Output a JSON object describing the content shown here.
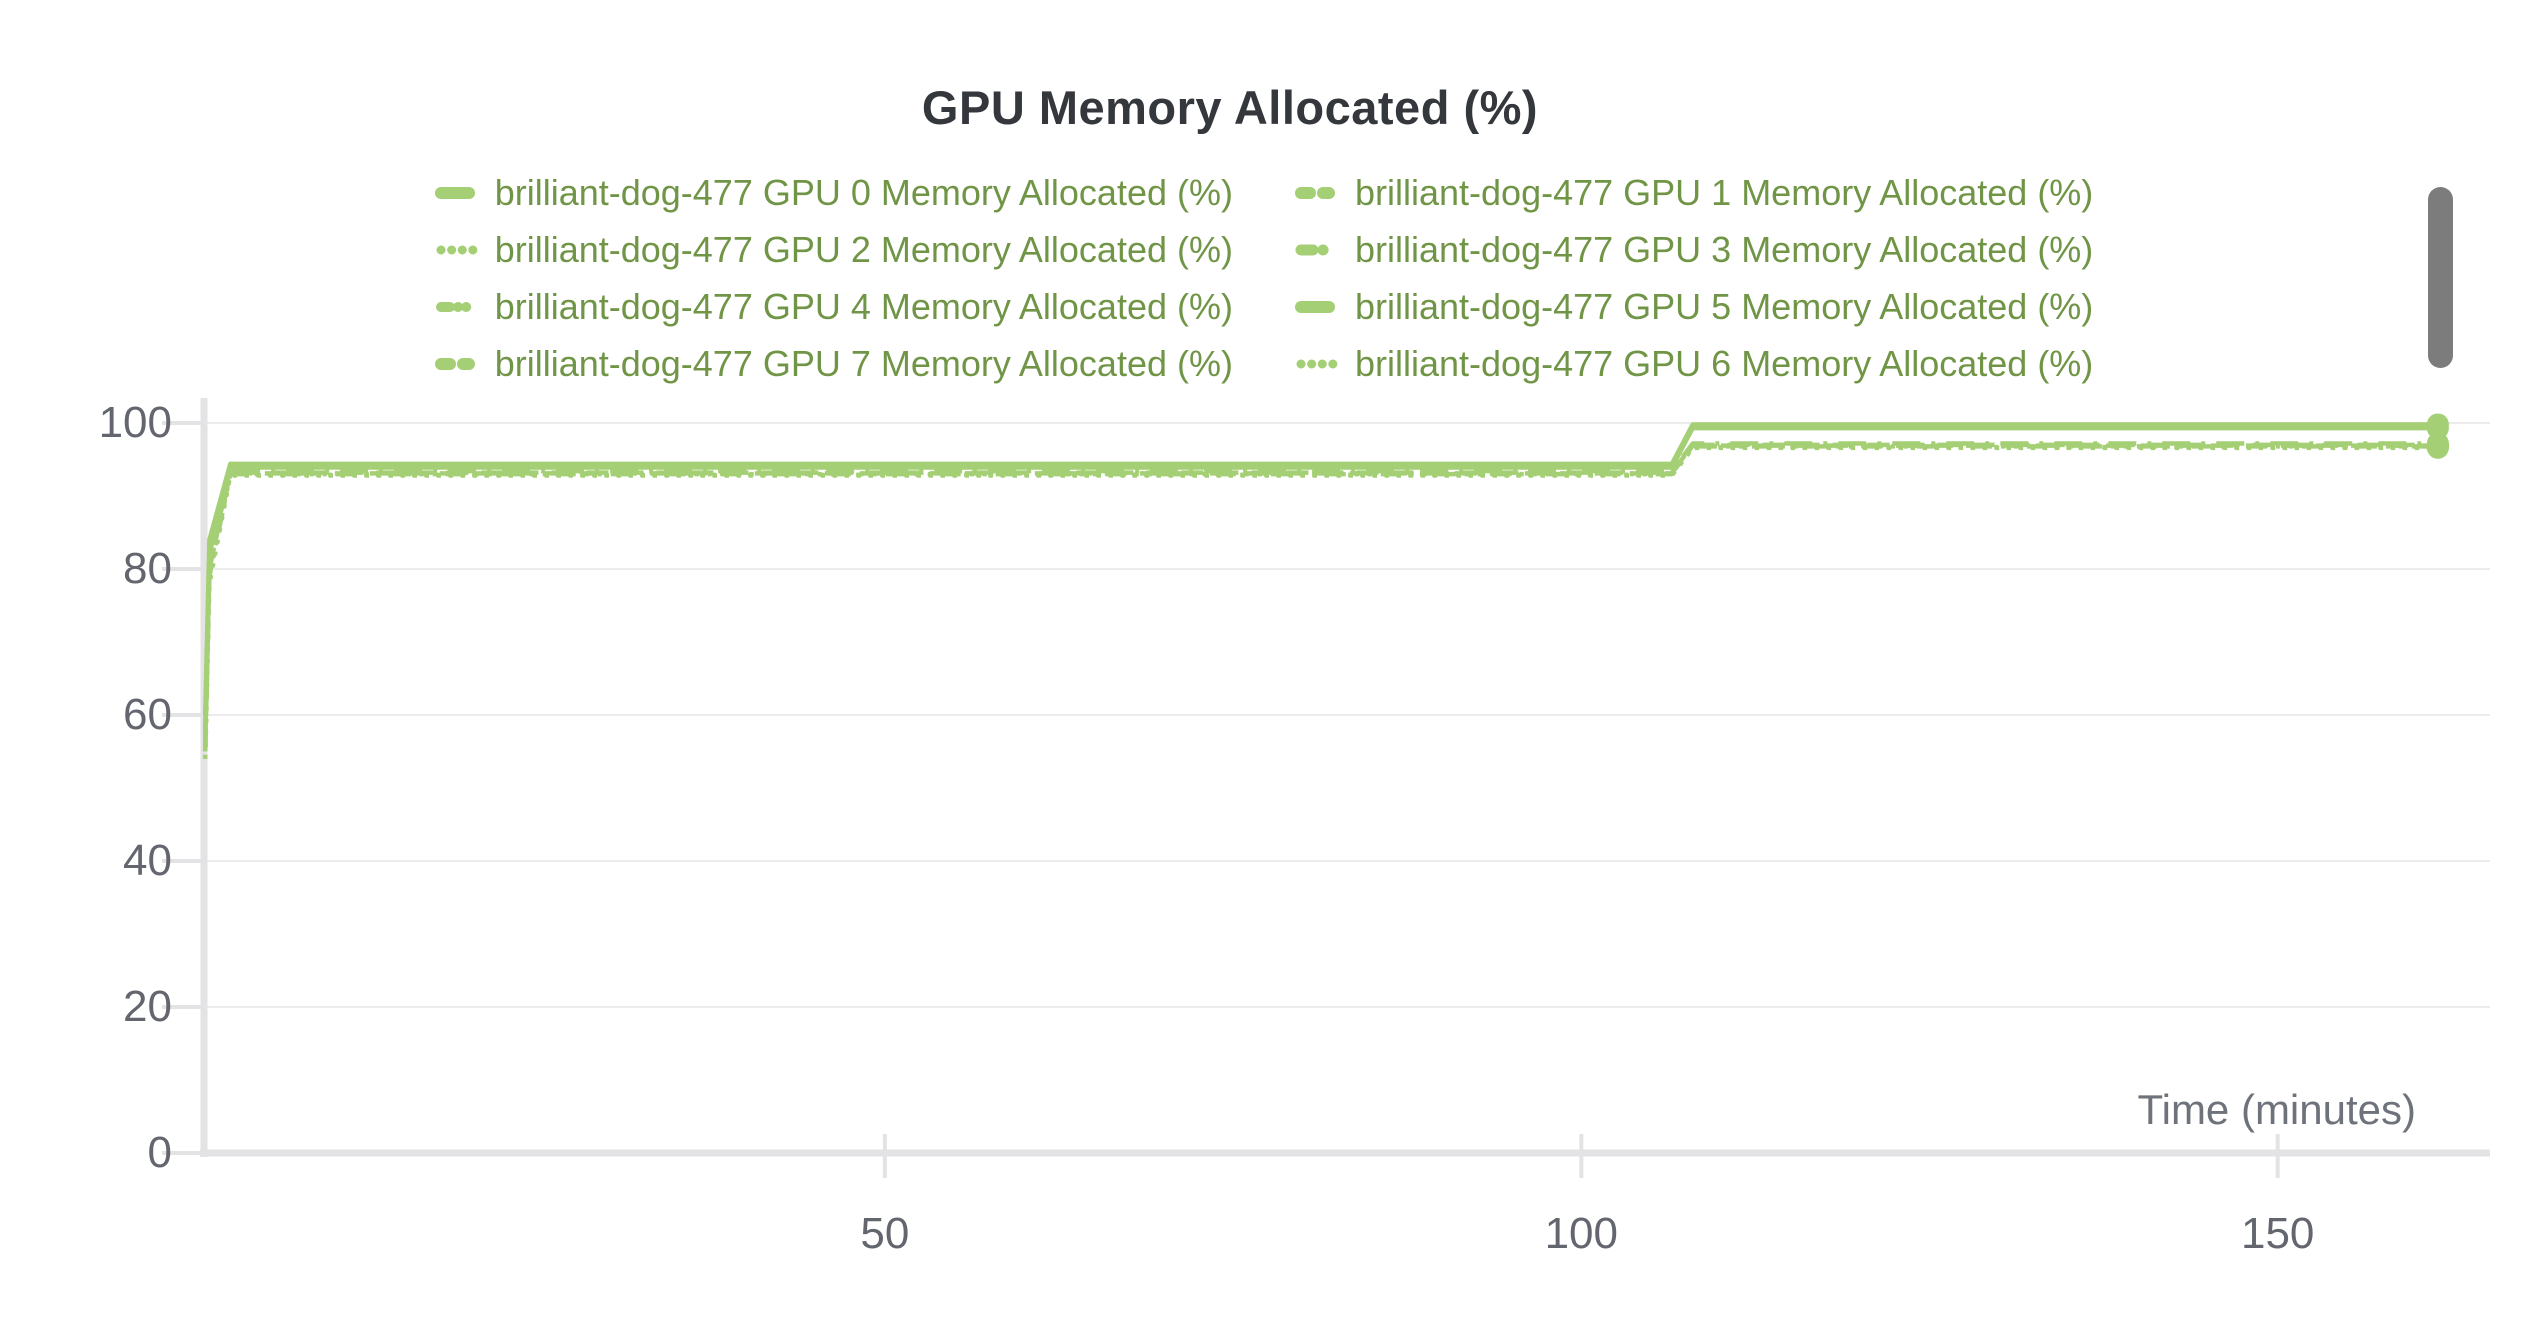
{
  "chart": {
    "title": "GPU Memory Allocated (%)",
    "x_axis_title": "Time (minutes)"
  },
  "colors": {
    "line_green": "#a4cf74",
    "legend_text_green": "#719546",
    "title_text": "#34373c",
    "tick_text": "#63666e",
    "axis_title_text": "#6e727a",
    "gridline": "#ececec",
    "axis_line": "#e3e3e5",
    "scrollbar": "#7c7c7c"
  },
  "chart_data": {
    "type": "line",
    "title": "GPU Memory Allocated (%)",
    "xlabel": "Time (minutes)",
    "ylabel": "",
    "xlim": [
      0,
      165
    ],
    "ylim": [
      0,
      100
    ],
    "xticks": [
      50,
      100,
      150
    ],
    "yticks": [
      0,
      20,
      40,
      60,
      80,
      100
    ],
    "grid": "horizontal-only",
    "legend_position": "top-two-columns",
    "line_color": "#a4cf74",
    "x": [
      1.2,
      1.5,
      3,
      106.5,
      108,
      161.5
    ],
    "series": [
      {
        "gpu": 0,
        "name": "brilliant-dog-477 GPU 0 Memory Allocated (%)",
        "dash": "solid",
        "values": [
          60,
          84,
          94.4,
          94.4,
          99.8,
          99.8
        ]
      },
      {
        "gpu": 1,
        "name": "brilliant-dog-477 GPU 1 Memory Allocated (%)",
        "dash": "dash",
        "values": [
          55,
          80,
          93.1,
          93.1,
          96.9,
          96.9
        ]
      },
      {
        "gpu": 2,
        "name": "brilliant-dog-477 GPU 2 Memory Allocated (%)",
        "dash": "dot",
        "values": [
          54,
          79,
          92.9,
          92.9,
          96.7,
          96.7
        ]
      },
      {
        "gpu": 3,
        "name": "brilliant-dog-477 GPU 3 Memory Allocated (%)",
        "dash": "dashdot",
        "values": [
          57,
          81,
          93.4,
          93.4,
          97.2,
          97.2
        ]
      },
      {
        "gpu": 4,
        "name": "brilliant-dog-477 GPU 4 Memory Allocated (%)",
        "dash": "dashdotdot",
        "values": [
          55,
          79,
          93.0,
          93.0,
          96.8,
          96.8
        ]
      },
      {
        "gpu": 5,
        "name": "brilliant-dog-477 GPU 5 Memory Allocated (%)",
        "dash": "solid",
        "values": [
          58,
          82,
          93.9,
          93.9,
          99.3,
          99.3
        ]
      },
      {
        "gpu": 7,
        "name": "brilliant-dog-477 GPU 7 Memory Allocated (%)",
        "dash": "dash",
        "values": [
          56,
          80,
          93.2,
          93.2,
          97.0,
          97.0
        ]
      },
      {
        "gpu": 6,
        "name": "brilliant-dog-477 GPU 6 Memory Allocated (%)",
        "dash": "dot",
        "values": [
          54,
          78,
          92.8,
          92.8,
          96.6,
          96.6
        ]
      }
    ]
  }
}
